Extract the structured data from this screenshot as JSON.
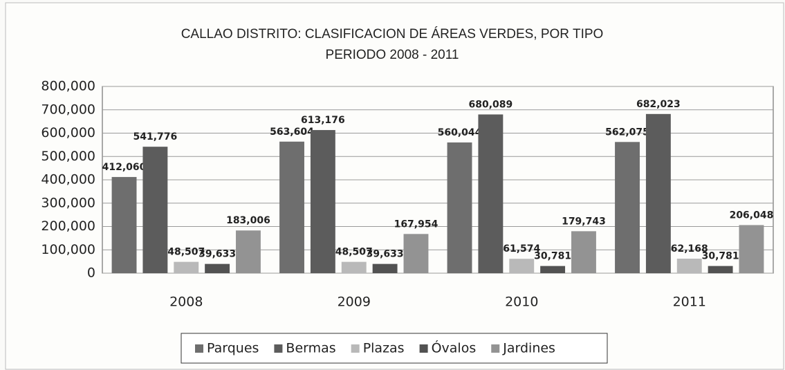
{
  "chart_data": {
    "type": "bar",
    "title": "CALLAO DISTRITO: CLASIFICACION DE ÁREAS VERDES, POR TIPO",
    "subtitle": "PERIODO 2008 - 2011",
    "categories": [
      "2008",
      "2009",
      "2010",
      "2011"
    ],
    "series": [
      {
        "name": "Parques",
        "color": "#6e6e6e",
        "values": [
          412060,
          563604,
          560044,
          562075
        ],
        "value_labels": [
          "412,060",
          "563,604",
          "560,044",
          "562,075"
        ]
      },
      {
        "name": "Bermas",
        "color": "#5c5c5c",
        "values": [
          541776,
          613176,
          680089,
          682023
        ],
        "value_labels": [
          "541,776",
          "613,176",
          "680,089",
          "682,023"
        ]
      },
      {
        "name": "Plazas",
        "color": "#b9b9b9",
        "values": [
          48507,
          48507,
          61574,
          62168
        ],
        "value_labels": [
          "48,507",
          "48,507",
          "61,574",
          "62,168"
        ]
      },
      {
        "name": "Óvalos",
        "color": "#525252",
        "values": [
          39633,
          39633,
          30781,
          30781
        ],
        "value_labels": [
          "39,633",
          "39,633",
          "30,781",
          "30,781"
        ]
      },
      {
        "name": "Jardines",
        "color": "#939393",
        "values": [
          183006,
          167954,
          179743,
          206048
        ],
        "value_labels": [
          "183,006",
          "167,954",
          "179,743",
          "206,048"
        ]
      }
    ],
    "ylim": [
      0,
      800000
    ],
    "yticks": [
      0,
      {
        "value": 100000,
        "label": "100,000"
      },
      {
        "value": 200000,
        "label": "200,000"
      },
      {
        "value": 300000,
        "label": "300,000"
      },
      {
        "value": 400000,
        "label": "400,000"
      },
      {
        "value": 500000,
        "label": "500,000"
      },
      {
        "value": 600000,
        "label": "600,000"
      },
      {
        "value": 700000,
        "label": "700,000"
      },
      {
        "value": 800000,
        "label": "800,000"
      }
    ],
    "grid": true,
    "legend": "bottom"
  }
}
